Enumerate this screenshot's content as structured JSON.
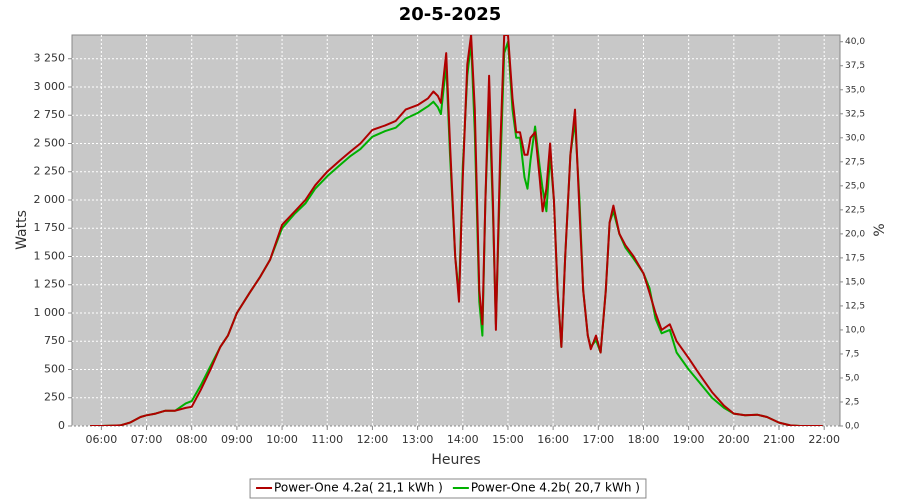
{
  "chart_data": {
    "type": "line",
    "title": "20-5-2025",
    "x_label": "Heures",
    "y_label": "Watts",
    "y2_label": "%",
    "x": [
      "05:45",
      "06:00",
      "06:25",
      "06:38",
      "06:52",
      "07:00",
      "07:12",
      "07:25",
      "07:38",
      "07:52",
      "08:00",
      "08:12",
      "08:25",
      "08:38",
      "08:48",
      "09:00",
      "09:17",
      "09:31",
      "09:44",
      "10:00",
      "10:17",
      "10:31",
      "10:44",
      "11:00",
      "11:17",
      "11:31",
      "11:44",
      "12:00",
      "12:17",
      "12:31",
      "12:44",
      "13:00",
      "13:14",
      "13:21",
      "13:27",
      "13:31",
      "13:38",
      "13:43",
      "13:50",
      "13:55",
      "14:00",
      "14:06",
      "14:11",
      "14:16",
      "14:22",
      "14:26",
      "14:30",
      "14:35",
      "14:40",
      "14:44",
      "14:50",
      "14:55",
      "15:00",
      "15:06",
      "15:11",
      "15:16",
      "15:22",
      "15:26",
      "15:30",
      "15:36",
      "15:42",
      "15:46",
      "15:51",
      "15:56",
      "16:01",
      "16:06",
      "16:11",
      "16:16",
      "16:23",
      "16:29",
      "16:35",
      "16:40",
      "16:46",
      "16:50",
      "16:57",
      "17:03",
      "17:10",
      "17:15",
      "17:20",
      "17:28",
      "17:36",
      "17:47",
      "18:00",
      "18:08",
      "18:16",
      "18:24",
      "18:35",
      "18:44",
      "19:00",
      "19:15",
      "19:31",
      "19:47",
      "20:00",
      "20:15",
      "20:31",
      "20:44",
      "21:00",
      "21:15",
      "21:28",
      "21:58"
    ],
    "series": [
      {
        "name": "Power-One 4.2a( 21,1 kWh )",
        "color": "#b00000",
        "values": [
          0,
          0,
          5,
          30,
          80,
          95,
          110,
          135,
          135,
          160,
          170,
          320,
          500,
          700,
          800,
          1000,
          1180,
          1320,
          1470,
          1780,
          1900,
          2000,
          2130,
          2250,
          2350,
          2430,
          2500,
          2620,
          2660,
          2700,
          2800,
          2840,
          2900,
          2960,
          2920,
          2860,
          3300,
          2500,
          1500,
          1100,
          2200,
          3200,
          3460,
          2800,
          1200,
          900,
          2000,
          3100,
          2000,
          850,
          2500,
          3460,
          3460,
          2900,
          2600,
          2600,
          2400,
          2400,
          2550,
          2600,
          2200,
          1900,
          2100,
          2500,
          2000,
          1200,
          700,
          1500,
          2400,
          2800,
          1900,
          1200,
          800,
          680,
          800,
          650,
          1200,
          1800,
          1950,
          1700,
          1600,
          1500,
          1350,
          1180,
          1000,
          850,
          900,
          750,
          600,
          450,
          300,
          180,
          110,
          95,
          100,
          80,
          30,
          5,
          0,
          0
        ]
      },
      {
        "name": "Power-One 4.2b( 20,7 kWh )",
        "color": "#00b000",
        "values": [
          0,
          0,
          5,
          30,
          80,
          95,
          110,
          135,
          135,
          200,
          220,
          360,
          530,
          700,
          800,
          1000,
          1180,
          1320,
          1470,
          1750,
          1880,
          1970,
          2100,
          2210,
          2310,
          2390,
          2450,
          2560,
          2610,
          2640,
          2720,
          2770,
          2830,
          2870,
          2820,
          2760,
          3200,
          2400,
          1500,
          1150,
          2300,
          3100,
          3400,
          2600,
          1100,
          800,
          2000,
          2900,
          1900,
          900,
          2300,
          3300,
          3400,
          2800,
          2550,
          2550,
          2200,
          2100,
          2350,
          2650,
          2300,
          2100,
          1900,
          2400,
          2000,
          1200,
          700,
          1500,
          2400,
          2700,
          2000,
          1200,
          800,
          700,
          760,
          650,
          1200,
          1800,
          1900,
          1700,
          1580,
          1480,
          1350,
          1220,
          950,
          820,
          850,
          650,
          500,
          380,
          250,
          160,
          110,
          95,
          100,
          80,
          30,
          5,
          0,
          0
        ]
      }
    ],
    "xlim": [
      "05:21",
      "22:21"
    ],
    "xticks": [
      "06:00",
      "07:00",
      "08:00",
      "09:00",
      "10:00",
      "11:00",
      "12:00",
      "13:00",
      "14:00",
      "15:00",
      "16:00",
      "17:00",
      "18:00",
      "19:00",
      "20:00",
      "21:00",
      "22:00"
    ],
    "ylim": [
      0,
      3460
    ],
    "yticks": [
      0,
      250,
      500,
      750,
      {
        "value": 1000,
        "label": "1 000"
      },
      {
        "value": 1250,
        "label": "1 250"
      },
      {
        "value": 1500,
        "label": "1 500"
      },
      {
        "value": 1750,
        "label": "1 750"
      },
      {
        "value": 2000,
        "label": "2 000"
      },
      {
        "value": 2250,
        "label": "2 250"
      },
      {
        "value": 2500,
        "label": "2 500"
      },
      {
        "value": 2750,
        "label": "2 750"
      },
      {
        "value": 3000,
        "label": "3 000"
      },
      {
        "value": 3250,
        "label": "3 250"
      }
    ],
    "y2lim": [
      0,
      40.7
    ],
    "y2ticks": [
      {
        "value": 0,
        "label": "0,0"
      },
      {
        "value": 2.5,
        "label": "2,5"
      },
      {
        "value": 5,
        "label": "5,0"
      },
      {
        "value": 7.5,
        "label": "7,5"
      },
      {
        "value": 10,
        "label": "10,0"
      },
      {
        "value": 12.5,
        "label": "12,5"
      },
      {
        "value": 15,
        "label": "15,0"
      },
      {
        "value": 17.5,
        "label": "17,5"
      },
      {
        "value": 20,
        "label": "20,0"
      },
      {
        "value": 22.5,
        "label": "22,5"
      },
      {
        "value": 25,
        "label": "25,0"
      },
      {
        "value": 27.5,
        "label": "27,5"
      },
      {
        "value": 30,
        "label": "30,0"
      },
      {
        "value": 32.5,
        "label": "32,5"
      },
      {
        "value": 35,
        "label": "35,0"
      },
      {
        "value": 37.5,
        "label": "37,5"
      },
      {
        "value": 40,
        "label": "40,0"
      }
    ],
    "grid": true,
    "plot_background": "#c8c8c8",
    "legend_position": "bottom"
  }
}
